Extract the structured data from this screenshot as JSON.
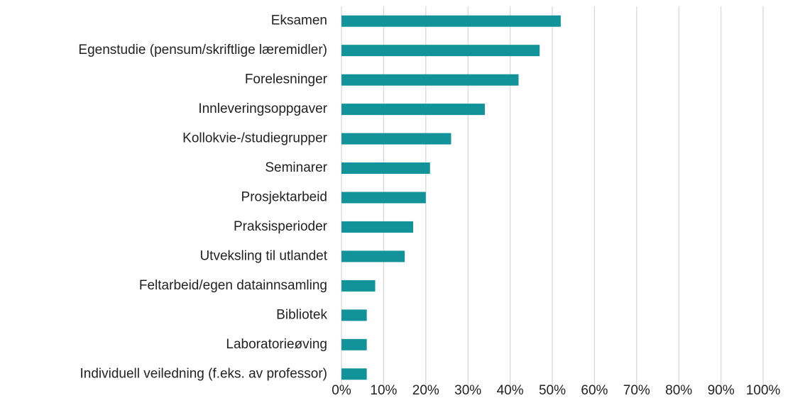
{
  "chart_data": {
    "type": "barh",
    "color": "#12939a",
    "grid": true,
    "categories": [
      "Eksamen",
      "Egenstudie (pensum/skriftlige læremidler)",
      "Forelesninger",
      "Innleveringsoppgaver",
      "Kollokvie-/studiegrupper",
      "Seminarer",
      "Prosjektarbeid",
      "Praksisperioder",
      "Utveksling til utlandet",
      "Feltarbeid/egen datainnsamling",
      "Bibliotek",
      "Laboratorieøving",
      "Individuell veiledning (f.eks. av professor)"
    ],
    "values": [
      52,
      47,
      42,
      34,
      26,
      21,
      20,
      17,
      15,
      8,
      6,
      6,
      6
    ],
    "xlim": [
      0,
      100
    ],
    "xticks": [
      {
        "value": 0,
        "label": "0%"
      },
      {
        "value": 10,
        "label": "10%"
      },
      {
        "value": 20,
        "label": "20%"
      },
      {
        "value": 30,
        "label": "30%"
      },
      {
        "value": 40,
        "label": "40%"
      },
      {
        "value": 50,
        "label": "50%"
      },
      {
        "value": 60,
        "label": "60%"
      },
      {
        "value": 70,
        "label": "70%"
      },
      {
        "value": 80,
        "label": "80%"
      },
      {
        "value": 90,
        "label": "90%"
      },
      {
        "value": 100,
        "label": "100%"
      }
    ]
  }
}
